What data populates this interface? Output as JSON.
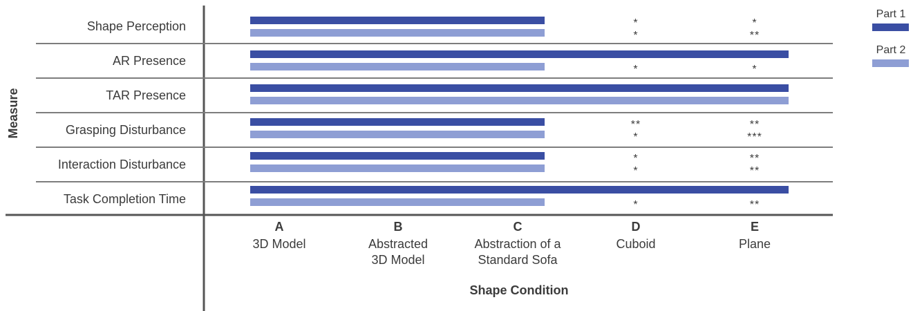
{
  "chart_data": {
    "type": "bar",
    "orientation": "horizontal",
    "ylabel": "Measure",
    "xlabel": "Shape Condition",
    "categories": [
      {
        "letter": "A",
        "name": [
          "3D Model"
        ]
      },
      {
        "letter": "B",
        "name": [
          "Abstracted",
          "3D Model"
        ]
      },
      {
        "letter": "C",
        "name": [
          "Abstraction of a",
          "Standard Sofa"
        ]
      },
      {
        "letter": "D",
        "name": [
          "Cuboid"
        ]
      },
      {
        "letter": "E",
        "name": [
          "Plane"
        ]
      }
    ],
    "legend": [
      {
        "name": "Part 1",
        "color": "#3a4ea3"
      },
      {
        "name": "Part 2",
        "color": "#8e9ed4"
      }
    ],
    "legend_position": "top-right",
    "rows": [
      {
        "measure": "Shape Perception",
        "part1": {
          "from": "A",
          "to": "C",
          "stars": {
            "D": "*",
            "E": "*"
          }
        },
        "part2": {
          "from": "A",
          "to": "C",
          "stars": {
            "D": "*",
            "E": "**"
          }
        }
      },
      {
        "measure": "AR Presence",
        "part1": {
          "from": "A",
          "to": "E",
          "stars": {}
        },
        "part2": {
          "from": "A",
          "to": "C",
          "stars": {
            "D": "*",
            "E": "*"
          }
        }
      },
      {
        "measure": "TAR Presence",
        "part1": {
          "from": "A",
          "to": "E",
          "stars": {}
        },
        "part2": {
          "from": "A",
          "to": "E",
          "stars": {}
        }
      },
      {
        "measure": "Grasping Disturbance",
        "part1": {
          "from": "A",
          "to": "C",
          "stars": {
            "D": "**",
            "E": "**"
          }
        },
        "part2": {
          "from": "A",
          "to": "C",
          "stars": {
            "D": "*",
            "E": "***"
          }
        }
      },
      {
        "measure": "Interaction Disturbance",
        "part1": {
          "from": "A",
          "to": "C",
          "stars": {
            "D": "*",
            "E": "**"
          }
        },
        "part2": {
          "from": "A",
          "to": "C",
          "stars": {
            "D": "*",
            "E": "**"
          }
        }
      },
      {
        "measure": "Task Completion Time",
        "part1": {
          "from": "A",
          "to": "E",
          "stars": {}
        },
        "part2": {
          "from": "A",
          "to": "C",
          "stars": {
            "D": "*",
            "E": "**"
          }
        }
      }
    ]
  }
}
